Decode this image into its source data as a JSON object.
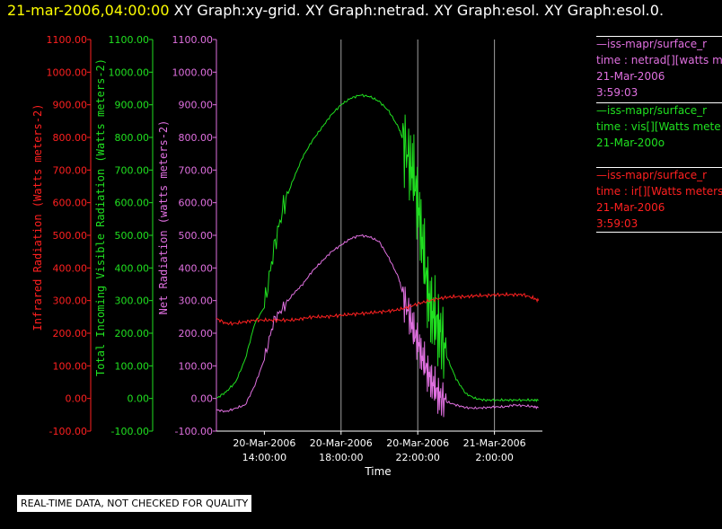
{
  "header": {
    "timestamp": "21-mar-2006,04:00:00",
    "graphs": "XY Graph:xy-grid.  XY Graph:netrad.  XY Graph:esol.  XY Graph:esol.0."
  },
  "notice": "REAL-TIME DATA, NOT CHECKED FOR QUALITY",
  "colors": {
    "ir": "#ff2020",
    "vis": "#20e020",
    "net": "#e070e0",
    "axis_text": "#ffffff"
  },
  "legend": [
    {
      "line1": "—iss-mapr/surface_r",
      "line2": "time : netrad[][watts m",
      "line3": "21-Mar-2006",
      "line4": "3:59:03",
      "color": "#e070e0"
    },
    {
      "line1": "—iss-mapr/surface_r",
      "line2": "time : vis[][Watts mete",
      "line3": "21-Mar-200o",
      "line4": "",
      "color": "#20e020"
    },
    {
      "line1": "—iss-mapr/surface_r",
      "line2": "time : ir[][Watts meters",
      "line3": "21-Mar-2006",
      "line4": "3:59:03",
      "color": "#ff2020"
    }
  ],
  "chart_data": {
    "type": "line",
    "xlabel": "Time",
    "x_ticks": [
      {
        "date": "20-Mar-2006",
        "time": "14:00:00",
        "hours": 14
      },
      {
        "date": "20-Mar-2006",
        "time": "18:00:00",
        "hours": 18
      },
      {
        "date": "20-Mar-2006",
        "time": "22:00:00",
        "hours": 22
      },
      {
        "date": "21-Mar-2006",
        "time": "2:00:00",
        "hours": 26
      }
    ],
    "xlim": [
      11.5,
      28.5
    ],
    "vertical_gridlines_at_hours": [
      18,
      22,
      26
    ],
    "ylim": [
      -100,
      1100
    ],
    "y_ticks": [
      "-100.00",
      "0.00",
      "100.00",
      "200.00",
      "300.00",
      "400.00",
      "500.00",
      "600.00",
      "700.00",
      "800.00",
      "900.00",
      "1000.00",
      "1100.00"
    ],
    "axes": [
      {
        "label": "Infrared Radiation (Watts meters-2)",
        "color": "#ff2020"
      },
      {
        "label": "Total Incoming Visible Radiation (Watts meters-2)",
        "color": "#20e020"
      },
      {
        "label": "Net Radiation (watts meters-2)",
        "color": "#e070e0"
      }
    ],
    "series": [
      {
        "key": "vis",
        "color": "#20e020",
        "x": [
          11.5,
          12,
          12.5,
          13,
          13.5,
          14,
          14.5,
          15,
          15.5,
          16,
          16.5,
          17,
          17.5,
          18,
          18.5,
          19,
          19.5,
          20,
          20.5,
          21,
          21.3,
          21.6,
          21.8,
          22,
          22.2,
          22.4,
          22.6,
          22.8,
          23,
          23.2,
          23.5,
          24,
          24.5,
          25,
          25.5,
          26,
          26.5,
          27,
          27.5,
          28,
          28.3
        ],
        "y": [
          0,
          20,
          50,
          120,
          230,
          280,
          460,
          590,
          670,
          740,
          790,
          830,
          870,
          900,
          920,
          930,
          925,
          910,
          880,
          830,
          780,
          720,
          680,
          600,
          500,
          390,
          300,
          250,
          230,
          200,
          130,
          60,
          15,
          0,
          -5,
          -5,
          -5,
          -5,
          -5,
          -5,
          -5
        ]
      },
      {
        "key": "net",
        "color": "#e070e0",
        "x": [
          11.5,
          12,
          12.5,
          13,
          13.5,
          14,
          14.5,
          15,
          15.5,
          16,
          16.5,
          17,
          17.5,
          18,
          18.5,
          19,
          19.5,
          20,
          20.5,
          21,
          21.3,
          21.6,
          21.8,
          22,
          22.2,
          22.4,
          22.6,
          22.8,
          23,
          23.2,
          23.5,
          24,
          24.5,
          25,
          25.5,
          26,
          26.5,
          27,
          27.5,
          28,
          28.3
        ],
        "y": [
          -35,
          -40,
          -30,
          -20,
          40,
          120,
          240,
          280,
          320,
          350,
          390,
          420,
          450,
          470,
          490,
          500,
          495,
          480,
          430,
          370,
          300,
          250,
          200,
          180,
          130,
          100,
          70,
          40,
          20,
          0,
          -10,
          -20,
          -28,
          -30,
          -28,
          -26,
          -26,
          -20,
          -22,
          -25,
          -28
        ]
      },
      {
        "key": "ir",
        "color": "#ff2020",
        "x": [
          11.5,
          12,
          12.5,
          13,
          13.5,
          14,
          14.5,
          15,
          15.5,
          16,
          16.5,
          17,
          17.5,
          18,
          18.5,
          19,
          19.5,
          20,
          20.5,
          21,
          21.5,
          22,
          22.5,
          23,
          23.5,
          24,
          24.5,
          25,
          25.5,
          26,
          26.5,
          27,
          27.5,
          28,
          28.3
        ],
        "y": [
          245,
          230,
          230,
          235,
          240,
          240,
          240,
          240,
          240,
          245,
          250,
          250,
          252,
          255,
          258,
          260,
          262,
          265,
          268,
          272,
          280,
          290,
          298,
          305,
          310,
          312,
          312,
          315,
          315,
          318,
          318,
          318,
          318,
          308,
          300
        ]
      }
    ]
  }
}
